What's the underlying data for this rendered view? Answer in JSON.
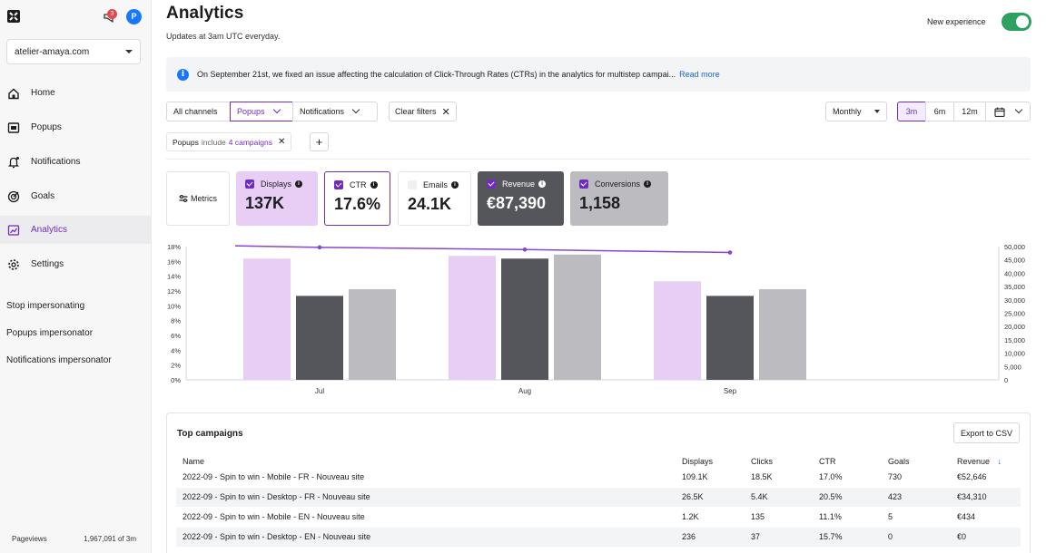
{
  "sidebar": {
    "notification_count": "3",
    "avatar_initial": "P",
    "site": "atelier-amaya.com",
    "nav": [
      {
        "label": "Home"
      },
      {
        "label": "Popups"
      },
      {
        "label": "Notifications"
      },
      {
        "label": "Goals"
      },
      {
        "label": "Analytics"
      },
      {
        "label": "Settings"
      }
    ],
    "links": [
      "Stop impersonating",
      "Popups impersonator",
      "Notifications impersonator"
    ],
    "pageviews_label": "Pageviews",
    "pageviews_value": "1,967,091 of 3m"
  },
  "header": {
    "title": "Analytics",
    "subtitle": "Updates at 3am UTC everyday.",
    "toggle_label": "New experience"
  },
  "banner": {
    "text": "On September 21st, we fixed an issue affecting the calculation of Click-Through Rates (CTRs) in the analytics for multistep campai...",
    "link": "Read more"
  },
  "filters": {
    "channels": [
      "All channels",
      "Popups",
      "Notifications"
    ],
    "clear": "Clear filters",
    "period": "Monthly",
    "ranges": [
      "3m",
      "6m",
      "12m"
    ],
    "chip_prefix": "Popups",
    "chip_mid": "include",
    "chip_value": "4 campaigns"
  },
  "metrics_button": "Metrics",
  "cards": [
    {
      "label": "Displays",
      "value": "137K"
    },
    {
      "label": "CTR",
      "value": "17.6%"
    },
    {
      "label": "Emails",
      "value": "24.1K"
    },
    {
      "label": "Revenue",
      "value": "€87,390"
    },
    {
      "label": "Conversions",
      "value": "1,158"
    }
  ],
  "colors": {
    "accent": "#6f2dbd",
    "displays": "#e8cdf5",
    "revenue": "#55555c",
    "conversions": "#bbbbc0",
    "ctr_line": "#8a45c9"
  },
  "chart_data": {
    "type": "bar",
    "categories": [
      "Jul",
      "Aug",
      "Sep"
    ],
    "left_axis_ticks": [
      "0%",
      "2%",
      "4%",
      "6%",
      "8%",
      "10%",
      "12%",
      "14%",
      "16%",
      "18%"
    ],
    "right_axis_ticks": [
      "0",
      "5,000",
      "10,000",
      "15,000",
      "20,000",
      "25,000",
      "30,000",
      "35,000",
      "40,000",
      "45,000",
      "50,000"
    ],
    "left_ylim": [
      0,
      18
    ],
    "right_ylim": [
      0,
      50000
    ],
    "series": [
      {
        "name": "Displays",
        "axis": "right",
        "values": [
          45500,
          46500,
          37000
        ]
      },
      {
        "name": "Revenue",
        "axis": "right",
        "values": [
          31500,
          45500,
          31500
        ]
      },
      {
        "name": "Conversions",
        "axis": "right",
        "values": [
          34000,
          47000,
          34000
        ]
      },
      {
        "name": "CTR",
        "axis": "left",
        "type": "line",
        "values": [
          17.9,
          17.6,
          17.2
        ]
      }
    ],
    "ctr_line_start": 18.1
  },
  "table": {
    "title": "Top campaigns",
    "export": "Export to CSV",
    "headers": [
      "Name",
      "Displays",
      "Clicks",
      "CTR",
      "Goals",
      "Revenue"
    ],
    "sort_indicator": "↓",
    "rows": [
      [
        "2022-09 - Spin to win - Mobile - FR - Nouveau site",
        "109.1K",
        "18.5K",
        "17.0%",
        "730",
        "€52,646"
      ],
      [
        "2022-09 - Spin to win - Desktop - FR - Nouveau site",
        "26.5K",
        "5.4K",
        "20.5%",
        "423",
        "€34,310"
      ],
      [
        "2022-09 - Spin to win - Mobile - EN - Nouveau site",
        "1.2K",
        "135",
        "11.1%",
        "5",
        "€434"
      ],
      [
        "2022-09 - Spin to win - Desktop - EN - Nouveau site",
        "236",
        "37",
        "15.7%",
        "0",
        "€0"
      ]
    ]
  }
}
